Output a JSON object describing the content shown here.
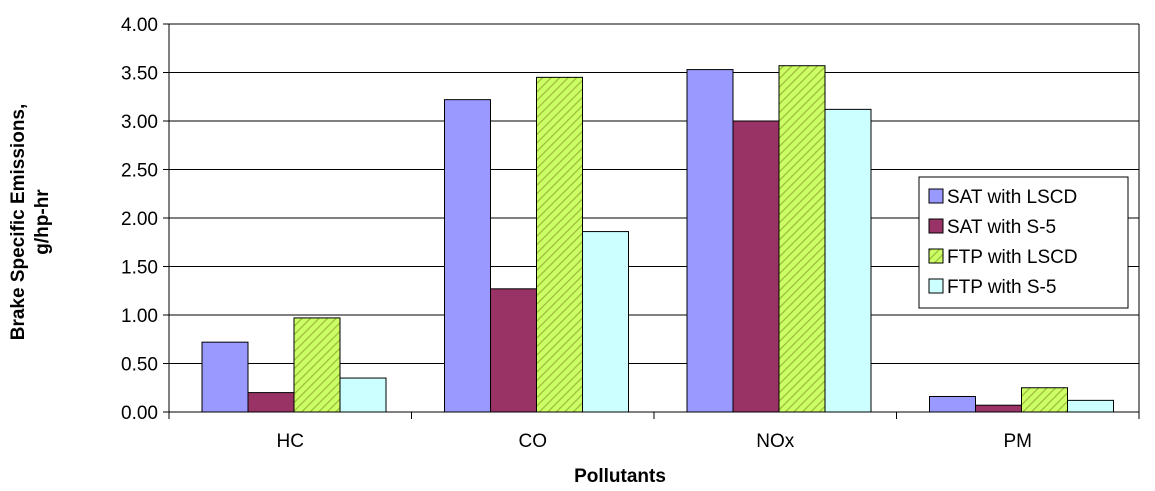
{
  "chart_data": {
    "type": "bar",
    "title": "",
    "xlabel": "Pollutants",
    "ylabel_line1": "Brake Specific Emissions,",
    "ylabel_line2": "g/hp-hr",
    "ylim": [
      0,
      4
    ],
    "ytick_labels": [
      "0.00",
      "0.50",
      "1.00",
      "1.50",
      "2.00",
      "2.50",
      "3.00",
      "3.50",
      "4.00"
    ],
    "categories": [
      "HC",
      "CO",
      "NOx",
      "PM"
    ],
    "series": [
      {
        "name": "SAT with LSCD",
        "values": [
          0.72,
          3.22,
          3.53,
          0.16
        ],
        "color": "#9999ff",
        "pattern": "solid"
      },
      {
        "name": "SAT with S-5",
        "values": [
          0.2,
          1.27,
          3.0,
          0.07
        ],
        "color": "#993366",
        "pattern": "solid"
      },
      {
        "name": "FTP with LSCD",
        "values": [
          0.97,
          3.45,
          3.57,
          0.25
        ],
        "color": "#ccff66",
        "pattern": "diagonal-stripes"
      },
      {
        "name": "FTP with S-5",
        "values": [
          0.35,
          1.86,
          3.12,
          0.12
        ],
        "color": "#ccffff",
        "pattern": "solid"
      }
    ],
    "legend_position": "right",
    "grid": true
  }
}
